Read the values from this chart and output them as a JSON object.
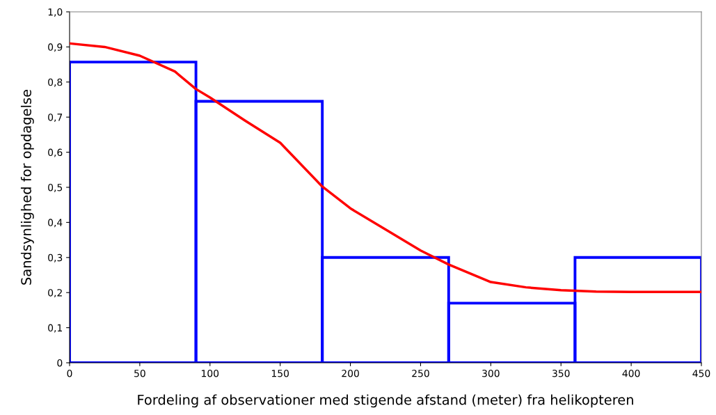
{
  "chart_data": {
    "type": "histogram",
    "xlabel": "Fordeling af observationer med stigende afstand (meter) fra helikopteren",
    "ylabel": "Sandsynlighed for opdagelse",
    "bins": [
      0,
      90,
      180,
      270,
      360,
      450
    ],
    "values": [
      0.857,
      0.745,
      0.3,
      0.17,
      0.3
    ],
    "color": "#0000ff",
    "series": [
      {
        "type": "line",
        "color": "#ff0000",
        "x": [
          0,
          25,
          50,
          75,
          90,
          100,
          125,
          150,
          180,
          200,
          225,
          250,
          270,
          300,
          325,
          350,
          375,
          400,
          425,
          450
        ],
        "values": [
          0.91,
          0.9,
          0.875,
          0.83,
          0.78,
          0.756,
          0.69,
          0.627,
          0.502,
          0.44,
          0.38,
          0.32,
          0.28,
          0.23,
          0.215,
          0.207,
          0.203,
          0.202,
          0.202,
          0.202
        ]
      }
    ],
    "xlim": [
      0,
      450
    ],
    "xticks": [
      0,
      50,
      100,
      150,
      200,
      250,
      300,
      350,
      400,
      450
    ],
    "ylim": [
      0,
      1.0
    ],
    "yticks": [
      0,
      {
        "value": 0.1,
        "label": "0,1"
      },
      {
        "value": 0.2,
        "label": "0,2"
      },
      {
        "value": 0.3,
        "label": "0,3"
      },
      {
        "value": 0.4,
        "label": "0,4"
      },
      {
        "value": 0.5,
        "label": "0,5"
      },
      {
        "value": 0.6,
        "label": "0,6"
      },
      {
        "value": 0.7,
        "label": "0,7"
      },
      {
        "value": 0.8,
        "label": "0,8"
      },
      {
        "value": 0.9,
        "label": "0,9"
      },
      {
        "value": 1.0,
        "label": "1,0"
      }
    ],
    "grid": false,
    "legend": false
  }
}
